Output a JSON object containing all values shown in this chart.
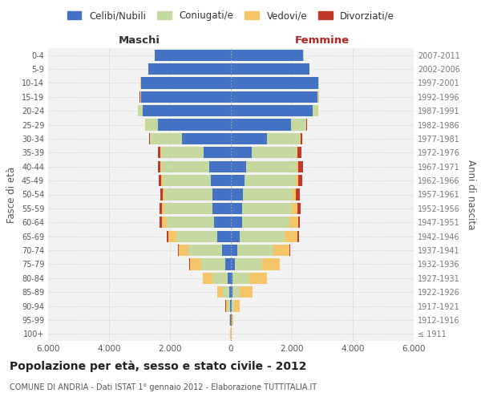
{
  "age_groups": [
    "100+",
    "95-99",
    "90-94",
    "85-89",
    "80-84",
    "75-79",
    "70-74",
    "65-69",
    "60-64",
    "55-59",
    "50-54",
    "45-49",
    "40-44",
    "35-39",
    "30-34",
    "25-29",
    "20-24",
    "15-19",
    "10-14",
    "5-9",
    "0-4"
  ],
  "birth_years": [
    "≤ 1911",
    "1912-1916",
    "1917-1921",
    "1922-1926",
    "1927-1931",
    "1932-1936",
    "1937-1941",
    "1942-1946",
    "1947-1951",
    "1952-1956",
    "1957-1961",
    "1962-1966",
    "1967-1971",
    "1972-1976",
    "1977-1981",
    "1982-1986",
    "1987-1991",
    "1992-1996",
    "1997-2001",
    "2002-2006",
    "2007-2011"
  ],
  "maschi": {
    "celibi": [
      10,
      15,
      30,
      50,
      100,
      180,
      300,
      450,
      560,
      600,
      610,
      650,
      700,
      900,
      1600,
      2400,
      2900,
      2950,
      2950,
      2700,
      2500
    ],
    "coniugati": [
      3,
      20,
      80,
      220,
      500,
      800,
      1100,
      1350,
      1550,
      1580,
      1570,
      1600,
      1600,
      1400,
      1050,
      400,
      150,
      30,
      10,
      5,
      5
    ],
    "vedovi": [
      3,
      15,
      60,
      180,
      320,
      370,
      320,
      250,
      160,
      90,
      50,
      35,
      20,
      12,
      8,
      4,
      3,
      3,
      3,
      3,
      3
    ],
    "divorziati": [
      1,
      3,
      4,
      8,
      12,
      18,
      28,
      45,
      65,
      75,
      75,
      90,
      80,
      70,
      35,
      18,
      8,
      4,
      3,
      1,
      1
    ]
  },
  "femmine": {
    "nubili": [
      10,
      15,
      30,
      40,
      60,
      120,
      200,
      300,
      360,
      380,
      400,
      460,
      490,
      680,
      1180,
      1980,
      2680,
      2830,
      2870,
      2580,
      2380
    ],
    "coniugate": [
      3,
      20,
      80,
      250,
      550,
      900,
      1200,
      1450,
      1570,
      1620,
      1630,
      1680,
      1680,
      1480,
      1080,
      490,
      175,
      48,
      13,
      4,
      4
    ],
    "vedove": [
      8,
      45,
      180,
      420,
      570,
      580,
      530,
      430,
      280,
      190,
      110,
      75,
      45,
      30,
      18,
      9,
      4,
      4,
      4,
      1,
      1
    ],
    "divorziate": [
      1,
      3,
      4,
      8,
      12,
      18,
      28,
      45,
      65,
      95,
      115,
      135,
      145,
      115,
      55,
      27,
      13,
      4,
      4,
      1,
      1
    ]
  },
  "colors": {
    "celibi": "#4472c4",
    "coniugati": "#c5d9a0",
    "vedovi": "#f5c56a",
    "divorziati": "#c0392b"
  },
  "xlim": 6000,
  "title": "Popolazione per età, sesso e stato civile - 2012",
  "subtitle": "COMUNE DI ANDRIA - Dati ISTAT 1° gennaio 2012 - Elaborazione TUTTITALIA.IT",
  "xlabel_left": "Maschi",
  "xlabel_right": "Femmine",
  "ylabel_left": "Fasce di età",
  "ylabel_right": "Anni di nascita",
  "bg_color": "#ffffff",
  "grid_color": "#cccccc"
}
